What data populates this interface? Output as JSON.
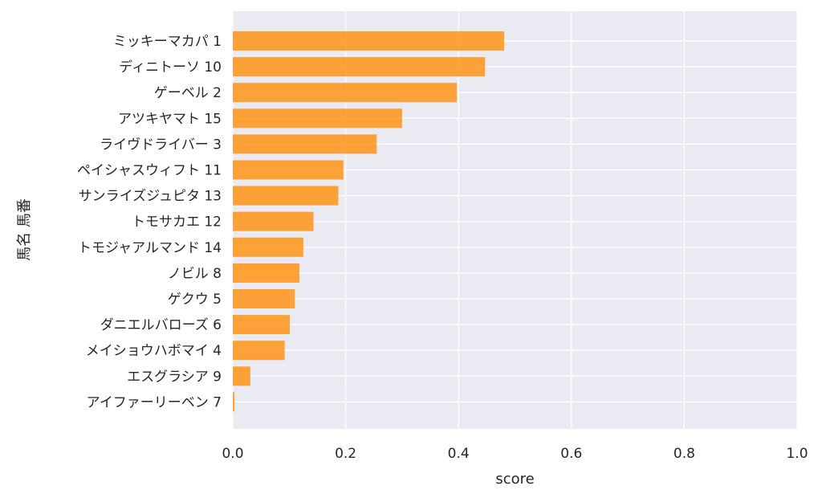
{
  "chart_data": {
    "type": "bar",
    "orientation": "horizontal",
    "categories": [
      "ミッキーマカパ 1",
      "ディニトーソ 10",
      "ゲーベル 2",
      "アツキヤマト 15",
      "ライヴドライバー 3",
      "ペイシャスウィフト 11",
      "サンライズジュピタ 13",
      "トモサカエ 12",
      "トモジャアルマンド 14",
      "ノビル 8",
      "ゲクウ 5",
      "ダニエルバローズ 6",
      "メイショウハボマイ 4",
      "エスグラシア 9",
      "アイファーリーベン 7"
    ],
    "values": [
      0.481,
      0.447,
      0.397,
      0.3,
      0.255,
      0.196,
      0.187,
      0.143,
      0.125,
      0.118,
      0.11,
      0.101,
      0.092,
      0.031,
      0.003
    ],
    "xlabel": "score",
    "ylabel": "馬名 馬番",
    "xlim": [
      0,
      1.0
    ],
    "xticks": [
      "0.0",
      "0.2",
      "0.4",
      "0.6",
      "0.8",
      "1.0"
    ],
    "grid": true,
    "bar_color": "#ff9418",
    "background_color": "#eaeaf2",
    "grid_color": "#ffffff"
  }
}
